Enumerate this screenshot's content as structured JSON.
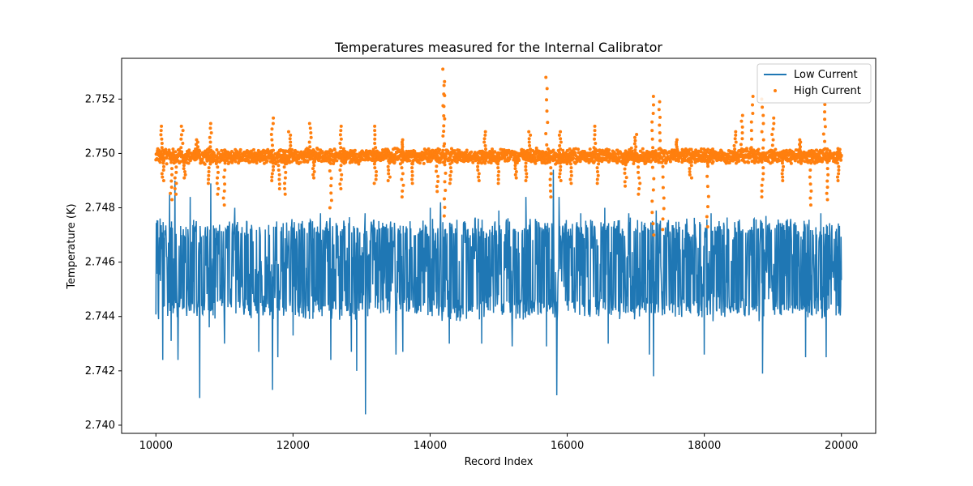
{
  "chart_data": {
    "type": "line+scatter",
    "title": "Temperatures measured for the Internal Calibrator",
    "xlabel": "Record Index",
    "ylabel": "Temperature (K)",
    "xlim": [
      9500,
      20500
    ],
    "ylim": [
      2.7397,
      2.7535
    ],
    "xticks": [
      10000,
      12000,
      14000,
      16000,
      18000,
      20000
    ],
    "yticks": [
      2.74,
      2.742,
      2.744,
      2.746,
      2.748,
      2.75,
      2.752
    ],
    "ytick_labels": [
      "2.740",
      "2.742",
      "2.744",
      "2.746",
      "2.748",
      "2.750",
      "2.752"
    ],
    "legend_position": "top-right",
    "series": [
      {
        "name": "Low Current",
        "kind": "line",
        "color": "#1f77b4",
        "x_range": [
          10000,
          20000
        ],
        "mean": 2.7458,
        "band": [
          2.744,
          2.7475
        ],
        "spikes_down": [
          [
            10040,
            2.7439
          ],
          [
            10100,
            2.7424
          ],
          [
            10220,
            2.7431
          ],
          [
            10320,
            2.7424
          ],
          [
            10640,
            2.741
          ],
          [
            10780,
            2.7436
          ],
          [
            11000,
            2.743
          ],
          [
            11500,
            2.7427
          ],
          [
            11700,
            2.7413
          ],
          [
            11780,
            2.7425
          ],
          [
            12000,
            2.7433
          ],
          [
            12550,
            2.7424
          ],
          [
            12850,
            2.7427
          ],
          [
            12930,
            2.742
          ],
          [
            13060,
            2.7404
          ],
          [
            13500,
            2.7426
          ],
          [
            13600,
            2.7427
          ],
          [
            14280,
            2.743
          ],
          [
            14750,
            2.743
          ],
          [
            15200,
            2.7429
          ],
          [
            15700,
            2.7429
          ],
          [
            15850,
            2.7411
          ],
          [
            16600,
            2.743
          ],
          [
            17200,
            2.7426
          ],
          [
            17260,
            2.7418
          ],
          [
            18000,
            2.7426
          ],
          [
            18850,
            2.7419
          ],
          [
            19480,
            2.7425
          ],
          [
            19780,
            2.7425
          ],
          [
            19960,
            2.7441
          ]
        ],
        "spikes_up": [
          [
            10200,
            2.7485
          ],
          [
            10280,
            2.749
          ],
          [
            10500,
            2.7484
          ],
          [
            10800,
            2.7489
          ],
          [
            11150,
            2.748
          ],
          [
            12400,
            2.7478
          ],
          [
            13050,
            2.7478
          ],
          [
            14000,
            2.748
          ],
          [
            14150,
            2.7482
          ],
          [
            14700,
            2.7476
          ],
          [
            15000,
            2.7479
          ],
          [
            15400,
            2.7484
          ],
          [
            15700,
            2.7496
          ],
          [
            15800,
            2.7494
          ],
          [
            15880,
            2.7484
          ],
          [
            16200,
            2.7478
          ],
          [
            16550,
            2.748
          ],
          [
            16900,
            2.7478
          ],
          [
            17300,
            2.7479
          ],
          [
            18100,
            2.7478
          ],
          [
            18900,
            2.7477
          ],
          [
            19700,
            2.7478
          ]
        ]
      },
      {
        "name": "High Current",
        "kind": "scatter",
        "color": "#ff7f0e",
        "x_range": [
          10000,
          20000
        ],
        "mean": 2.7499,
        "band": [
          2.7497,
          2.7502
        ],
        "excursions_down": [
          [
            10100,
            2.749
          ],
          [
            10220,
            2.7483
          ],
          [
            10290,
            2.7485
          ],
          [
            10420,
            2.7491
          ],
          [
            10780,
            2.7489
          ],
          [
            10900,
            2.7485
          ],
          [
            11000,
            2.7481
          ],
          [
            11700,
            2.749
          ],
          [
            11800,
            2.7487
          ],
          [
            11880,
            2.7485
          ],
          [
            12300,
            2.7491
          ],
          [
            12550,
            2.748
          ],
          [
            12700,
            2.7487
          ],
          [
            13200,
            2.7489
          ],
          [
            13400,
            2.749
          ],
          [
            13600,
            2.7484
          ],
          [
            13750,
            2.7489
          ],
          [
            14100,
            2.7486
          ],
          [
            14220,
            2.7477
          ],
          [
            14300,
            2.7489
          ],
          [
            14700,
            2.749
          ],
          [
            15000,
            2.7489
          ],
          [
            15250,
            2.7491
          ],
          [
            15400,
            2.749
          ],
          [
            15750,
            2.7484
          ],
          [
            15900,
            2.749
          ],
          [
            16050,
            2.7489
          ],
          [
            16450,
            2.7489
          ],
          [
            16850,
            2.7488
          ],
          [
            17050,
            2.7485
          ],
          [
            17250,
            2.747
          ],
          [
            17400,
            2.7472
          ],
          [
            17800,
            2.7491
          ],
          [
            18050,
            2.7473
          ],
          [
            18850,
            2.7484
          ],
          [
            19150,
            2.749
          ],
          [
            19550,
            2.7481
          ],
          [
            19800,
            2.7483
          ],
          [
            19950,
            2.749
          ]
        ],
        "excursions_up": [
          [
            10080,
            2.751
          ],
          [
            10380,
            2.751
          ],
          [
            10600,
            2.7505
          ],
          [
            10800,
            2.7511
          ],
          [
            11700,
            2.7513
          ],
          [
            11950,
            2.7508
          ],
          [
            12250,
            2.7511
          ],
          [
            12700,
            2.751
          ],
          [
            13200,
            2.751
          ],
          [
            13600,
            2.7505
          ],
          [
            14200,
            2.7531
          ],
          [
            14200,
            2.7525
          ],
          [
            14800,
            2.7508
          ],
          [
            15450,
            2.7508
          ],
          [
            15700,
            2.7528
          ],
          [
            15900,
            2.7508
          ],
          [
            16400,
            2.751
          ],
          [
            17000,
            2.7507
          ],
          [
            17250,
            2.7521
          ],
          [
            17350,
            2.7519
          ],
          [
            17600,
            2.7505
          ],
          [
            18450,
            2.7508
          ],
          [
            18550,
            2.7514
          ],
          [
            18700,
            2.7521
          ],
          [
            18850,
            2.752
          ],
          [
            19000,
            2.7513
          ],
          [
            19750,
            2.7518
          ],
          [
            19400,
            2.7505
          ]
        ]
      }
    ]
  }
}
